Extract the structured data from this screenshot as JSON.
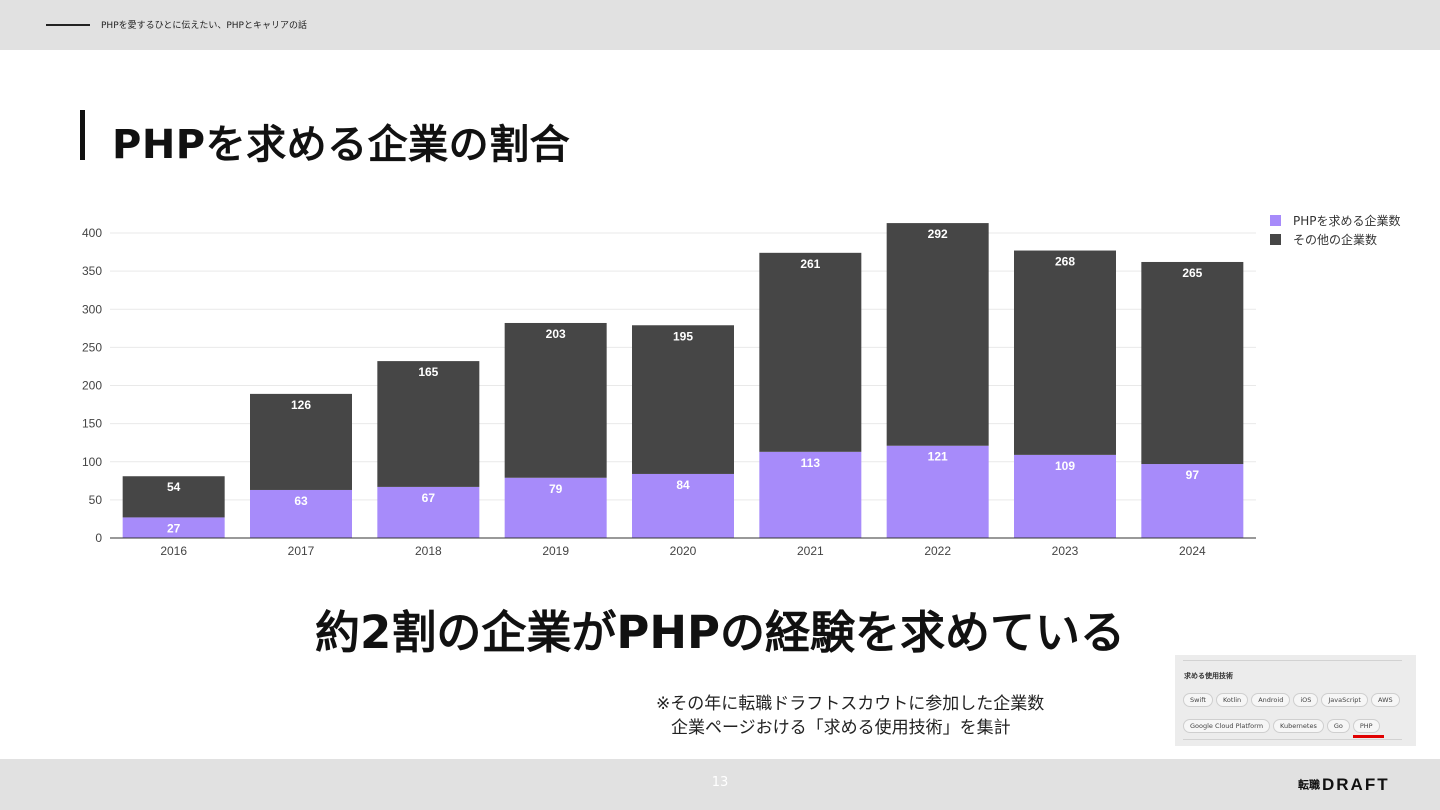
{
  "header": {
    "text": "PHPを愛するひとに伝えたい、PHPとキャリアの話"
  },
  "title": "PHPを求める企業の割合",
  "chart_data": {
    "type": "bar",
    "stacked": true,
    "categories": [
      "2016",
      "2017",
      "2018",
      "2019",
      "2020",
      "2021",
      "2022",
      "2023",
      "2024"
    ],
    "series": [
      {
        "name": "PHPを求める企業数",
        "values": [
          27,
          63,
          67,
          79,
          84,
          113,
          121,
          109,
          97
        ],
        "color": "#a78bfa"
      },
      {
        "name": "その他の企業数",
        "values": [
          54,
          126,
          165,
          203,
          195,
          261,
          292,
          268,
          265
        ],
        "color": "#464646"
      }
    ],
    "y_ticks": [
      0,
      50,
      100,
      150,
      200,
      250,
      300,
      350,
      400
    ],
    "ylim": [
      0,
      420
    ],
    "grid": true,
    "legend_position": "top-right",
    "title": "",
    "xlabel": "",
    "ylabel": ""
  },
  "headline": "約2割の企業がPHPの経験を求めている",
  "note": {
    "line1": "※その年に転職ドラフトスカウトに参加した企業数",
    "line2": "企業ページおける「求める使用技術」を集計"
  },
  "inset": {
    "title": "求める使用技術",
    "chips": [
      "Swift",
      "Kotlin",
      "Android",
      "iOS",
      "JavaScript",
      "AWS",
      "Google Cloud Platform",
      "Kubernetes",
      "Go",
      "PHP"
    ],
    "highlight": "PHP",
    "highlight_color": "#e00000"
  },
  "footer": {
    "page_number": "13",
    "logo_kanji": "転職",
    "logo_text": "DRAFT"
  }
}
